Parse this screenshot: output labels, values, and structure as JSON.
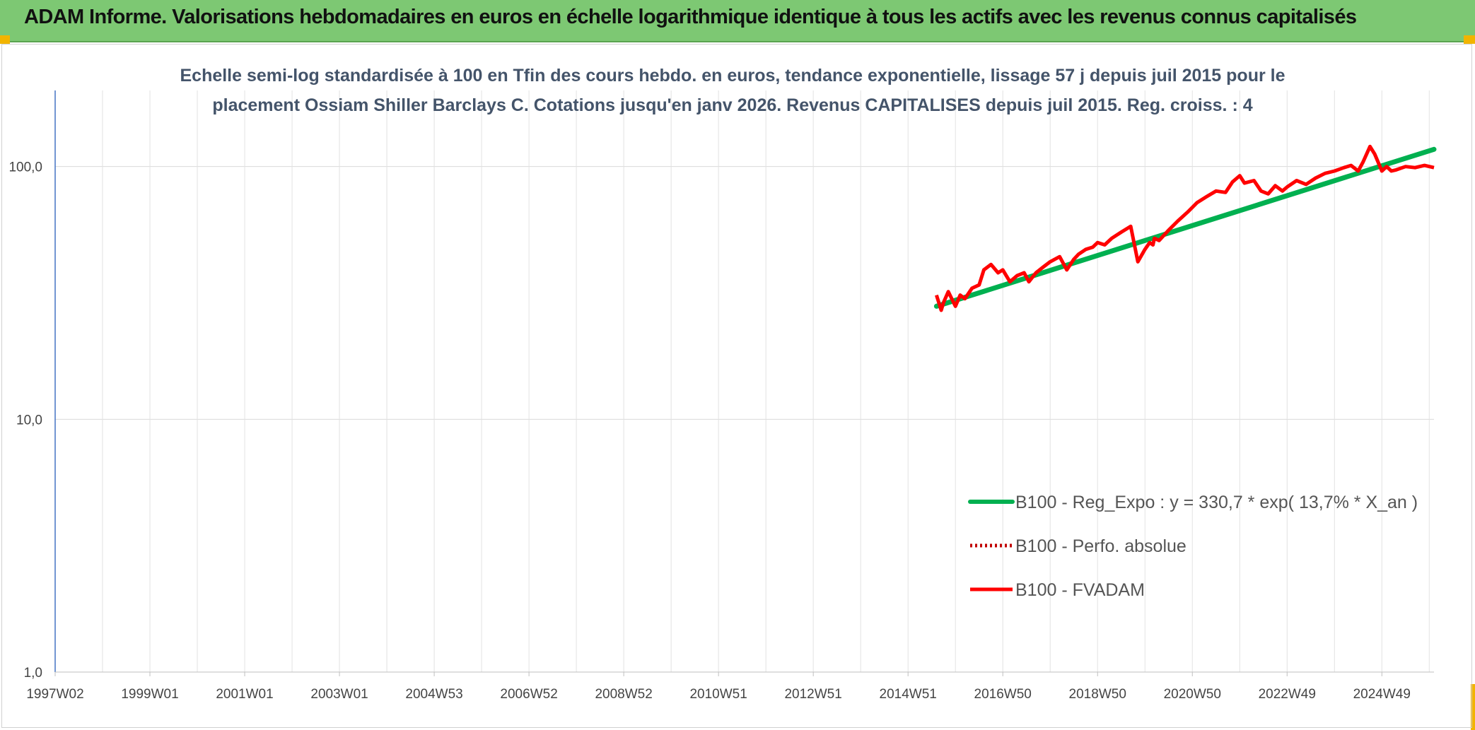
{
  "header": {
    "title": "ADAM Informe. Valorisations hebdomadaires en euros en échelle logarithmique identique à tous les actifs avec les revenus connus capitalisés"
  },
  "colors": {
    "banner": "#7dc873",
    "accent_corner": "#f2b400",
    "regression": "#00b050",
    "fvadam": "#ff0000",
    "perfo": "#c00000",
    "title_text": "#44546a",
    "y_axis_line": "#4472c4"
  },
  "chart_data": {
    "type": "line",
    "title_lines": [
      "Echelle semi-log standardisée à 100 en Tfin des cours hebdo. en euros, tendance exponentielle, lissage 57 j depuis juil 2015 pour le",
      "placement Ossiam Shiller Barclays C. Cotations jusqu'en janv 2026. Revenus CAPITALISES depuis juil 2015. Reg. croiss. : 4"
    ],
    "y_scale": "log",
    "ylim": [
      1,
      200
    ],
    "y_ticks": [
      {
        "value": 100,
        "label": "100,0"
      },
      {
        "value": 10,
        "label": "10,0"
      },
      {
        "value": 1,
        "label": "1,0"
      }
    ],
    "x_range": [
      1997.0,
      2026.1
    ],
    "x_ticks": [
      {
        "pos": 1997.0,
        "label": "1997W02"
      },
      {
        "pos": 1999.0,
        "label": "1999W01"
      },
      {
        "pos": 2001.0,
        "label": "2001W01"
      },
      {
        "pos": 2003.0,
        "label": "2003W01"
      },
      {
        "pos": 2005.0,
        "label": "2004W53"
      },
      {
        "pos": 2007.0,
        "label": "2006W52"
      },
      {
        "pos": 2009.0,
        "label": "2008W52"
      },
      {
        "pos": 2011.0,
        "label": "2010W51"
      },
      {
        "pos": 2013.0,
        "label": "2012W51"
      },
      {
        "pos": 2015.0,
        "label": "2014W51"
      },
      {
        "pos": 2017.0,
        "label": "2016W50"
      },
      {
        "pos": 2019.0,
        "label": "2018W50"
      },
      {
        "pos": 2021.0,
        "label": "2020W50"
      },
      {
        "pos": 2023.0,
        "label": "2022W49"
      },
      {
        "pos": 2025.0,
        "label": "2024W49"
      }
    ],
    "gridlines": true,
    "legend_position": "lower-right",
    "legend": [
      {
        "label": "B100 - Reg_Expo : y = 330,7 * exp( 13,7% *  X_an )",
        "series": "reg"
      },
      {
        "label": "B100 - Perfo. absolue",
        "series": "perfo"
      },
      {
        "label": "B100 - FVADAM",
        "series": "fvadam"
      }
    ],
    "series": [
      {
        "name": "B100 - Reg_Expo : y = 330,7 * exp( 13,7% *  X_an )",
        "key": "reg",
        "x": [
          2015.6,
          2026.1
        ],
        "y": [
          28,
          117
        ]
      },
      {
        "name": "B100 - Perfo. absolue",
        "key": "perfo",
        "x": [],
        "y": []
      },
      {
        "name": "B100 - FVADAM",
        "key": "fvadam",
        "x": [
          2015.6,
          2015.7,
          2015.75,
          2015.85,
          2016.0,
          2016.1,
          2016.2,
          2016.35,
          2016.5,
          2016.6,
          2016.75,
          2016.9,
          2017.0,
          2017.15,
          2017.3,
          2017.45,
          2017.55,
          2017.7,
          2017.85,
          2018.0,
          2018.2,
          2018.35,
          2018.5,
          2018.6,
          2018.75,
          2018.9,
          2019.0,
          2019.15,
          2019.3,
          2019.5,
          2019.7,
          2019.85,
          2020.0,
          2020.1,
          2020.17,
          2020.2,
          2020.3,
          2020.5,
          2020.7,
          2020.9,
          2021.1,
          2021.3,
          2021.5,
          2021.7,
          2021.85,
          2022.0,
          2022.1,
          2022.3,
          2022.45,
          2022.6,
          2022.75,
          2022.9,
          2023.0,
          2023.2,
          2023.4,
          2023.6,
          2023.8,
          2024.0,
          2024.2,
          2024.35,
          2024.5,
          2024.6,
          2024.75,
          2024.85,
          2025.0,
          2025.1,
          2025.2,
          2025.3,
          2025.5,
          2025.7,
          2025.9,
          2026.1
        ],
        "y": [
          31,
          27,
          29,
          32,
          28,
          31,
          30,
          33,
          34,
          39,
          41,
          38,
          39,
          35,
          37,
          38,
          35,
          38,
          40,
          42,
          44,
          39,
          43,
          45,
          47,
          48,
          50,
          49,
          52,
          55,
          58,
          42,
          47,
          50,
          49,
          52,
          51,
          56,
          61,
          66,
          72,
          76,
          80,
          79,
          87,
          92,
          86,
          88,
          80,
          78,
          84,
          80,
          83,
          88,
          85,
          90,
          94,
          96,
          99,
          101,
          96,
          104,
          120,
          112,
          96,
          100,
          96,
          97,
          100,
          99,
          101,
          99
        ]
      }
    ]
  }
}
